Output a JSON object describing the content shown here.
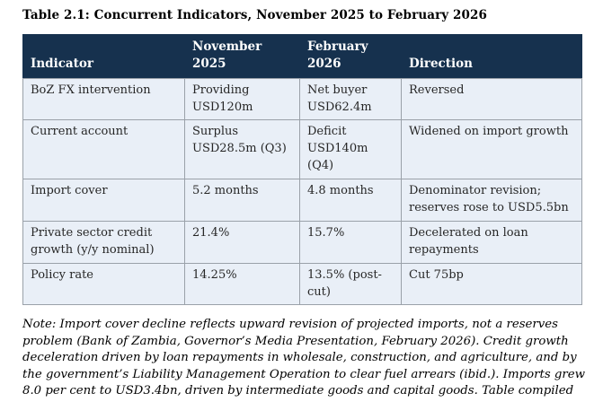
{
  "title": "Table 2.1: Concurrent Indicators, November 2025 to February 2026",
  "table": {
    "headers": [
      "Indicator",
      "November 2025",
      "February 2026",
      "Direction"
    ],
    "rows": [
      [
        "BoZ FX intervention",
        "Providing USD120m",
        "Net buyer USD62.4m",
        "Reversed"
      ],
      [
        "Current account",
        "Surplus USD28.5m (Q3)",
        "Deficit USD140m (Q4)",
        "Widened on import growth"
      ],
      [
        "Import cover",
        "5.2 months",
        "4.8 months",
        "Denominator revision; reserves rose to USD5.5bn"
      ],
      [
        "Private sector credit growth (y/y nominal)",
        "21.4%",
        "15.7%",
        "Decelerated on loan repayments"
      ],
      [
        "Policy rate",
        "14.25%",
        "13.5% (post-cut)",
        "Cut 75bp"
      ]
    ]
  },
  "note": "Note: Import cover decline reflects upward revision of projected imports, not a reserves problem (Bank of Zambia, Governor’s Media Presentation, February 2026). Credit growth deceleration driven by loan repayments in wholesale, construction, and agriculture, and by the government’s Liability Management Operation to clear fuel arrears (ibid.). Imports grew 8.0 per cent to USD3.4bn, driven by intermediate goods and capital goods. Table compiled by author.",
  "colors": {
    "header_bg": "#16314e",
    "header_text": "#ffffff",
    "row_bg": "#e9eff7",
    "border": "#9aa1a9"
  }
}
